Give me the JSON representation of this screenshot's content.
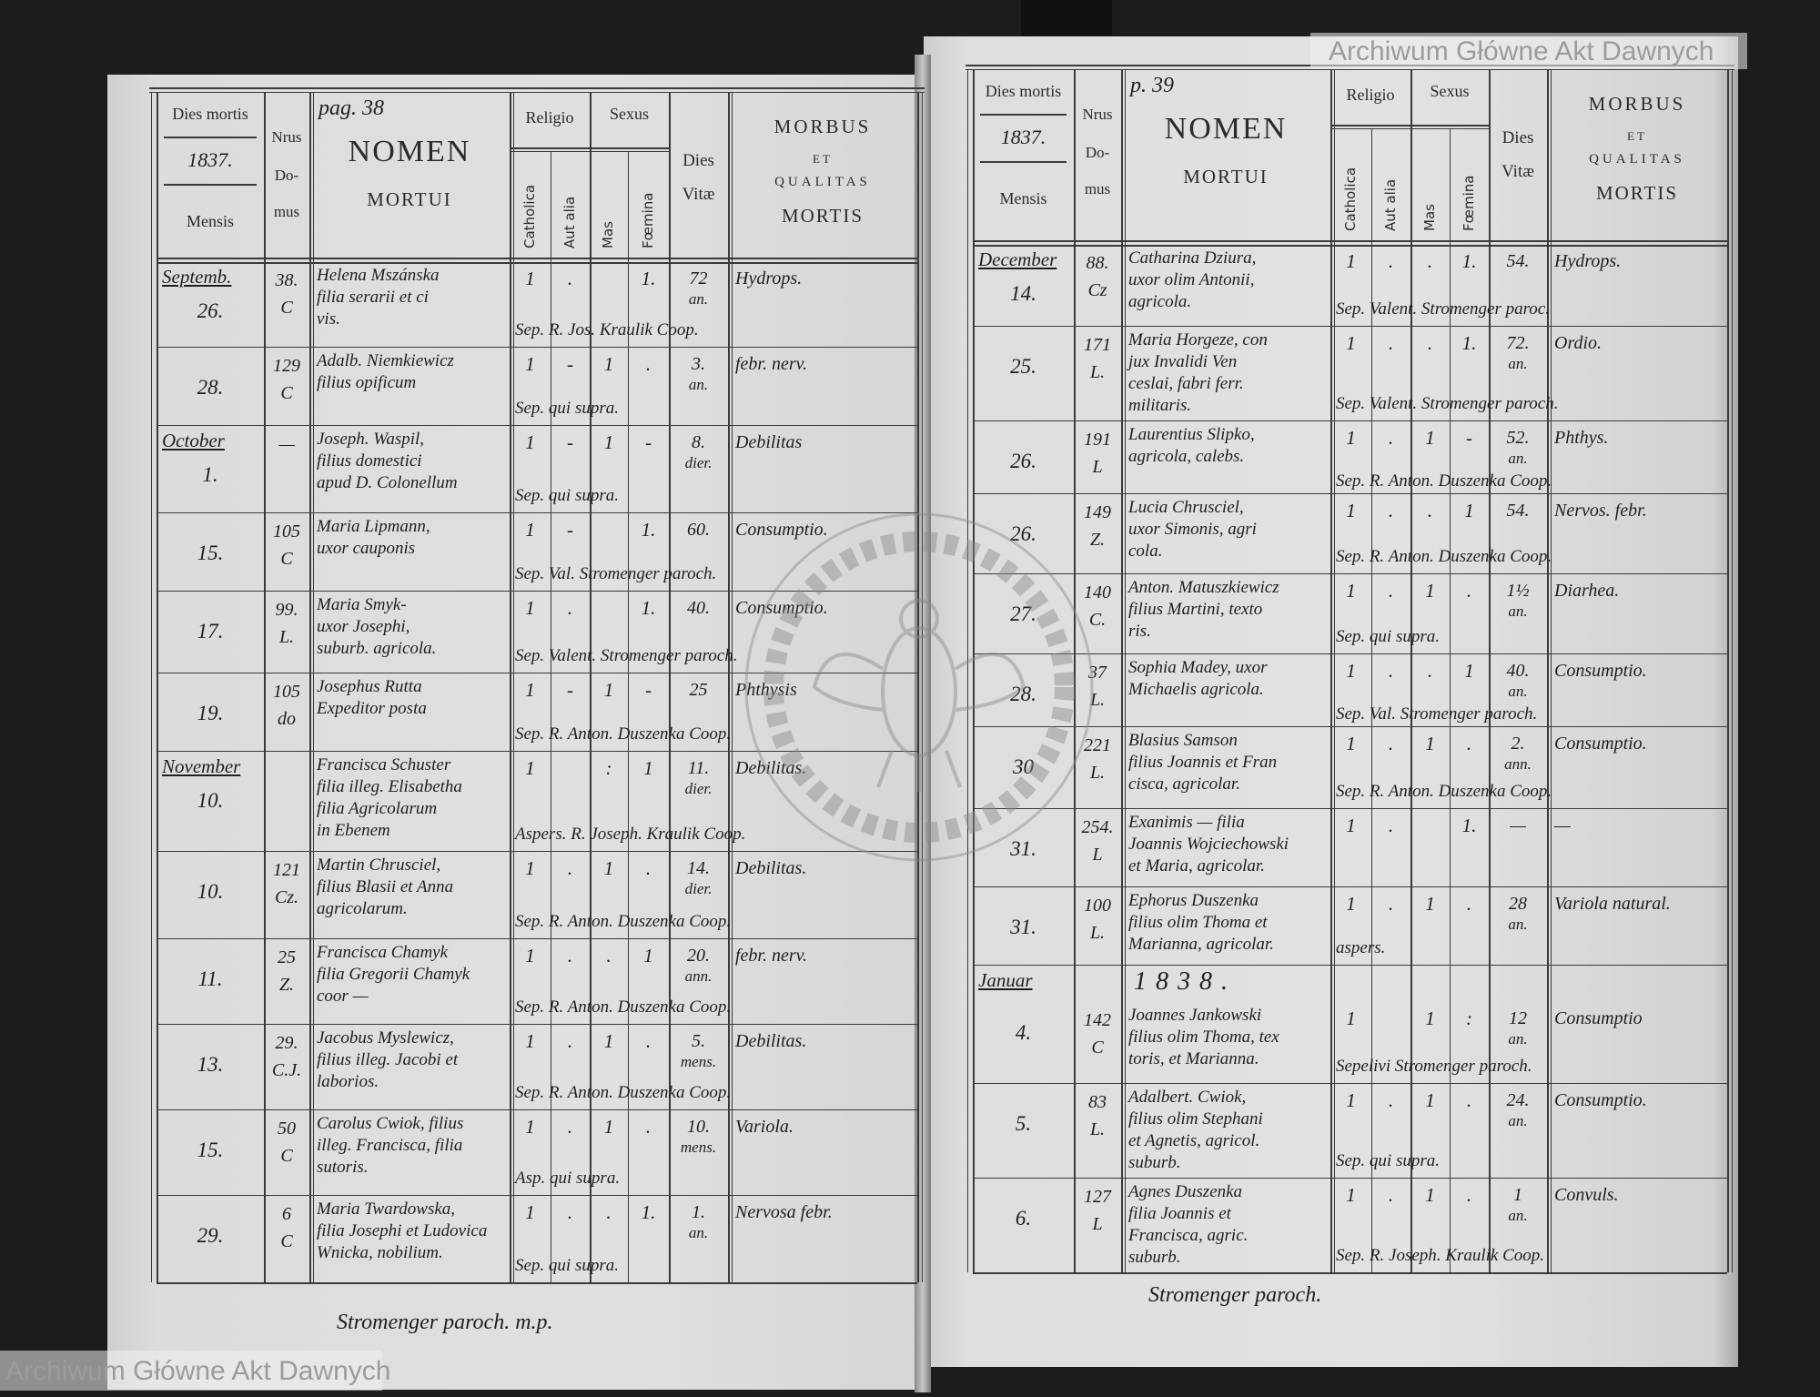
{
  "header": {
    "dies_mortis": "Dies mortis",
    "mensis": "Mensis",
    "nrus": "Nrus",
    "do": "Do-",
    "mus": "mus",
    "nomen": "NOMEN",
    "mortui": "MORTUI",
    "religio": "Religio",
    "sexus": "Sexus",
    "catholica": "Catholica",
    "aut_alia": "Aut alia",
    "mas": "Mas",
    "foemina": "Fœmina",
    "dies": "Dies",
    "vitae": "Vitæ",
    "morbus": "MORBUS",
    "et": "ET",
    "qualitas": "QUALITAS",
    "mortis": "MORTIS"
  },
  "pages": [
    {
      "page_number": "pag. 38",
      "year": "1837.",
      "entries": [
        {
          "month": "Septemb.",
          "day": "26.",
          "house": [
            "38.",
            "C"
          ],
          "name": [
            "Helena Mszánska",
            "filia serarii et ci",
            "vis."
          ],
          "catholica": "1",
          "aut_alia": ".",
          "mas": "",
          "foemina": "1.",
          "age": "72",
          "age_unit": "an.",
          "morbus": "Hydrops.",
          "note": "Sep. R. Jos. Kraulik Coop."
        },
        {
          "month": "",
          "day": "28.",
          "house": [
            "129",
            "C"
          ],
          "name": [
            "Adalb. Niemkiewicz",
            "filius opificum"
          ],
          "catholica": "1",
          "aut_alia": "-",
          "mas": "1",
          "foemina": ".",
          "age": "3.",
          "age_unit": "an.",
          "morbus": "febr. nerv.",
          "note": "Sep. qui supra."
        },
        {
          "month": "October",
          "day": "1.",
          "house": [
            "—",
            ""
          ],
          "name": [
            "Joseph. Waspil,",
            "filius domestici",
            "apud D. Colonellum"
          ],
          "catholica": "1",
          "aut_alia": "-",
          "mas": "1",
          "foemina": "-",
          "age": "8.",
          "age_unit": "dier.",
          "morbus": "Debilitas",
          "note": "Sep. qui supra."
        },
        {
          "month": "",
          "day": "15.",
          "house": [
            "105",
            "C"
          ],
          "name": [
            "Maria Lipmann,",
            "uxor cauponis"
          ],
          "catholica": "1",
          "aut_alia": "-",
          "mas": "",
          "foemina": "1.",
          "age": "60.",
          "age_unit": "",
          "morbus": "Consumptio.",
          "note": "Sep. Val. Stromenger paroch."
        },
        {
          "month": "",
          "day": "17.",
          "house": [
            "99.",
            "L."
          ],
          "name": [
            "Maria Smyk-",
            "uxor Josephi,",
            "suburb. agricola."
          ],
          "catholica": "1",
          "aut_alia": ".",
          "mas": "",
          "foemina": "1.",
          "age": "40.",
          "age_unit": "",
          "morbus": "Consumptio.",
          "note": "Sep. Valent. Stromenger paroch."
        },
        {
          "month": "",
          "day": "19.",
          "house": [
            "105",
            "do"
          ],
          "name": [
            "Josephus Rutta",
            "Expeditor posta"
          ],
          "catholica": "1",
          "aut_alia": "-",
          "mas": "1",
          "foemina": "-",
          "age": "25",
          "age_unit": "",
          "morbus": "Phthysis",
          "note": "Sep. R. Anton. Duszenka Coop."
        },
        {
          "month": "November",
          "day": "10.",
          "house": [
            "",
            ""
          ],
          "name": [
            "Francisca Schuster",
            "filia illeg. Elisabetha",
            "filia Agricolarum",
            "in Ebenem"
          ],
          "catholica": "1",
          "aut_alia": "",
          "mas": ":",
          "foemina": "1",
          "age": "11.",
          "age_unit": "dier.",
          "morbus": "Debilitas.",
          "note": "Aspers. R. Joseph. Kraulik Coop."
        },
        {
          "month": "",
          "day": "10.",
          "house": [
            "121",
            "Cz."
          ],
          "name": [
            "Martin Chrusciel,",
            "filius Blasii et Anna",
            "agricolarum."
          ],
          "catholica": "1",
          "aut_alia": ".",
          "mas": "1",
          "foemina": ".",
          "age": "14.",
          "age_unit": "dier.",
          "morbus": "Debilitas.",
          "note": "Sep. R. Anton. Duszenka Coop."
        },
        {
          "month": "",
          "day": "11.",
          "house": [
            "25",
            "Z."
          ],
          "name": [
            "Francisca Chamyk",
            "filia Gregorii Chamyk",
            "coor —"
          ],
          "catholica": "1",
          "aut_alia": ".",
          "mas": ".",
          "foemina": "1",
          "age": "20.",
          "age_unit": "ann.",
          "morbus": "febr. nerv.",
          "note": "Sep. R. Anton. Duszenka Coop."
        },
        {
          "month": "",
          "day": "13.",
          "house": [
            "29.",
            "C.J."
          ],
          "name": [
            "Jacobus Myslewicz,",
            "filius illeg. Jacobi et",
            "laborios."
          ],
          "catholica": "1",
          "aut_alia": ".",
          "mas": "1",
          "foemina": ".",
          "age": "5.",
          "age_unit": "mens.",
          "morbus": "Debilitas.",
          "note": "Sep. R. Anton. Duszenka Coop."
        },
        {
          "month": "",
          "day": "15.",
          "house": [
            "50",
            "C"
          ],
          "name": [
            "Carolus Cwiok, filius",
            "illeg. Francisca, filia",
            "sutoris."
          ],
          "catholica": "1",
          "aut_alia": ".",
          "mas": "1",
          "foemina": ".",
          "age": "10.",
          "age_unit": "mens.",
          "morbus": "Variola.",
          "note": "Asp. qui supra."
        },
        {
          "month": "",
          "day": "29.",
          "house": [
            "6",
            "C"
          ],
          "name": [
            "Maria Twardowska,",
            "filia Josephi et Ludovica",
            "Wnicka, nobilium."
          ],
          "catholica": "1",
          "aut_alia": ".",
          "mas": ".",
          "foemina": "1.",
          "age": "1.",
          "age_unit": "an.",
          "morbus": "Nervosa febr.",
          "note": "Sep. qui supra."
        }
      ],
      "signature": "Stromenger paroch. m.p."
    },
    {
      "page_number": "p. 39",
      "year": "1837.",
      "entries": [
        {
          "month": "December",
          "day": "14.",
          "house": [
            "88.",
            "Cz"
          ],
          "name": [
            "Catharina Dziura,",
            "uxor olim Antonii,",
            "agricola."
          ],
          "catholica": "1",
          "aut_alia": ".",
          "mas": ".",
          "foemina": "1.",
          "age": "54.",
          "age_unit": "",
          "morbus": "Hydrops.",
          "note": "Sep. Valent. Stromenger paroc."
        },
        {
          "month": "",
          "day": "25.",
          "house": [
            "171",
            "L."
          ],
          "name": [
            "Maria Horgeze, con",
            "jux Invalidi Ven",
            "ceslai, fabri ferr.",
            "militaris."
          ],
          "catholica": "1",
          "aut_alia": ".",
          "mas": ".",
          "foemina": "1.",
          "age": "72.",
          "age_unit": "an.",
          "morbus": "Ordio.",
          "note": "Sep. Valent. Stromenger paroch."
        },
        {
          "month": "",
          "day": "26.",
          "house": [
            "191",
            "L"
          ],
          "name": [
            "Laurentius Slipko,",
            "agricola, calebs."
          ],
          "catholica": "1",
          "aut_alia": ".",
          "mas": "1",
          "foemina": "-",
          "age": "52.",
          "age_unit": "an.",
          "morbus": "Phthys.",
          "note": "Sep. R. Anton. Duszenka Coop."
        },
        {
          "month": "",
          "day": "26.",
          "house": [
            "149",
            "Z."
          ],
          "name": [
            "Lucia Chrusciel,",
            "uxor Simonis, agri",
            "cola."
          ],
          "catholica": "1",
          "aut_alia": ".",
          "mas": ".",
          "foemina": "1",
          "age": "54.",
          "age_unit": "",
          "morbus": "Nervos. febr.",
          "note": "Sep. R. Anton. Duszenka Coop."
        },
        {
          "month": "",
          "day": "27.",
          "house": [
            "140",
            "C."
          ],
          "name": [
            "Anton. Matuszkiewicz",
            "filius Martini, texto",
            "ris."
          ],
          "catholica": "1",
          "aut_alia": ".",
          "mas": "1",
          "foemina": ".",
          "age": "1½",
          "age_unit": "an.",
          "morbus": "Diarhea.",
          "note": "Sep. qui supra."
        },
        {
          "month": "",
          "day": "28.",
          "house": [
            "37",
            "L."
          ],
          "name": [
            "Sophia Madey, uxor",
            "Michaelis agricola."
          ],
          "catholica": "1",
          "aut_alia": ".",
          "mas": ".",
          "foemina": "1",
          "age": "40.",
          "age_unit": "an.",
          "morbus": "Consumptio.",
          "note": "Sep. Val. Stromenger paroch."
        },
        {
          "month": "",
          "day": "30",
          "house": [
            "221",
            "L."
          ],
          "name": [
            "Blasius Samson",
            "filius Joannis et Fran",
            "cisca, agricolar."
          ],
          "catholica": "1",
          "aut_alia": ".",
          "mas": "1",
          "foemina": ".",
          "age": "2.",
          "age_unit": "ann.",
          "morbus": "Consumptio.",
          "note": "Sep. R. Anton. Duszenka Coop."
        },
        {
          "month": "",
          "day": "31.",
          "house": [
            "254.",
            "L"
          ],
          "name": [
            "Exanimis — filia",
            "Joannis Wojciechowski",
            "et Maria, agricolar."
          ],
          "catholica": "1",
          "aut_alia": ".",
          "mas": "",
          "foemina": "1.",
          "age": "—",
          "age_unit": "",
          "morbus": "—",
          "note": ""
        },
        {
          "month": "",
          "day": "31.",
          "house": [
            "100",
            "L."
          ],
          "name": [
            "Ephorus Duszenka",
            "filius olim Thoma et",
            "Marianna, agricolar."
          ],
          "catholica": "1",
          "aut_alia": ".",
          "mas": "1",
          "foemina": ".",
          "age": "28",
          "age_unit": "an.",
          "morbus": "Variola natural.",
          "note": "aspers."
        },
        {
          "month": "Januar",
          "year_line": "1838.",
          "day": "4.",
          "house": [
            "142",
            "C"
          ],
          "name": [
            "Joannes Jankowski",
            "filius olim Thoma, tex",
            "toris, et Marianna."
          ],
          "catholica": "1",
          "aut_alia": "",
          "mas": "1",
          "foemina": ":",
          "age": "12",
          "age_unit": "an.",
          "morbus": "Consumptio",
          "note": "Sepelivi Stromenger paroch."
        },
        {
          "month": "",
          "day": "5.",
          "house": [
            "83",
            "L."
          ],
          "name": [
            "Adalbert. Cwiok,",
            "filius olim Stephani",
            "et Agnetis, agricol.",
            "suburb."
          ],
          "catholica": "1",
          "aut_alia": ".",
          "mas": "1",
          "foemina": ".",
          "age": "24.",
          "age_unit": "an.",
          "morbus": "Consumptio.",
          "note": "Sep. qui supra."
        },
        {
          "month": "",
          "day": "6.",
          "house": [
            "127",
            "L"
          ],
          "name": [
            "Agnes Duszenka",
            "filia Joannis et",
            "Francisca, agric.",
            "suburb."
          ],
          "catholica": "1",
          "aut_alia": ".",
          "mas": "1",
          "foemina": ".",
          "age": "1",
          "age_unit": "an.",
          "morbus": "Convuls.",
          "note": "Sep. R. Joseph. Kraulik Coop."
        }
      ],
      "signature": "Stromenger paroch."
    }
  ],
  "watermark": {
    "text": "Archiwum Główne Akt Dawnych",
    "stamp_text": "ARCHIWUM GŁÓWNE AKT DAWNYCH",
    "stamp_icon": "eagle-emblem"
  },
  "colors": {
    "paper": "#dcdcdc",
    "ink": "#1f1f1f",
    "background": "#1c1c1c",
    "watermark": "#9c9c9c"
  }
}
